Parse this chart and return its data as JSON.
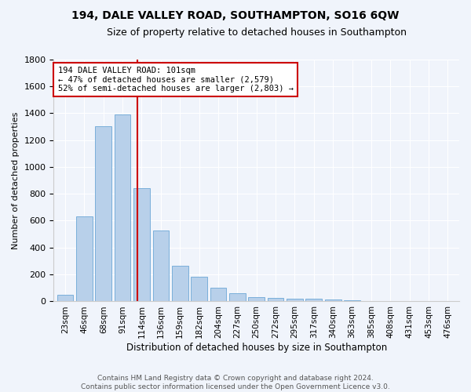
{
  "title": "194, DALE VALLEY ROAD, SOUTHAMPTON, SO16 6QW",
  "subtitle": "Size of property relative to detached houses in Southampton",
  "xlabel": "Distribution of detached houses by size in Southampton",
  "ylabel": "Number of detached properties",
  "categories": [
    "23sqm",
    "46sqm",
    "68sqm",
    "91sqm",
    "114sqm",
    "136sqm",
    "159sqm",
    "182sqm",
    "204sqm",
    "227sqm",
    "250sqm",
    "272sqm",
    "295sqm",
    "317sqm",
    "340sqm",
    "363sqm",
    "385sqm",
    "408sqm",
    "431sqm",
    "453sqm",
    "476sqm"
  ],
  "values": [
    50,
    630,
    1300,
    1390,
    840,
    530,
    265,
    185,
    100,
    62,
    30,
    28,
    22,
    18,
    12,
    8,
    5,
    4,
    3,
    3,
    3
  ],
  "bar_color": "#b8d0ea",
  "bar_edge_color": "#7aafda",
  "vline_x": 3.78,
  "vline_color": "#cc0000",
  "annotation_line1": "194 DALE VALLEY ROAD: 101sqm",
  "annotation_line2": "← 47% of detached houses are smaller (2,579)",
  "annotation_line3": "52% of semi-detached houses are larger (2,803) →",
  "annotation_box_color": "white",
  "annotation_box_edge_color": "#cc0000",
  "ylim": [
    0,
    1800
  ],
  "yticks": [
    0,
    200,
    400,
    600,
    800,
    1000,
    1200,
    1400,
    1600,
    1800
  ],
  "footer_line1": "Contains HM Land Registry data © Crown copyright and database right 2024.",
  "footer_line2": "Contains public sector information licensed under the Open Government Licence v3.0.",
  "bg_color": "#f0f4fb",
  "plot_bg_color": "#f0f4fb",
  "grid_color": "#ffffff",
  "title_fontsize": 10,
  "subtitle_fontsize": 9,
  "ylabel_fontsize": 8,
  "xlabel_fontsize": 8.5,
  "tick_fontsize": 8,
  "xtick_fontsize": 7.5,
  "annotation_fontsize": 7.5,
  "footer_fontsize": 6.5
}
